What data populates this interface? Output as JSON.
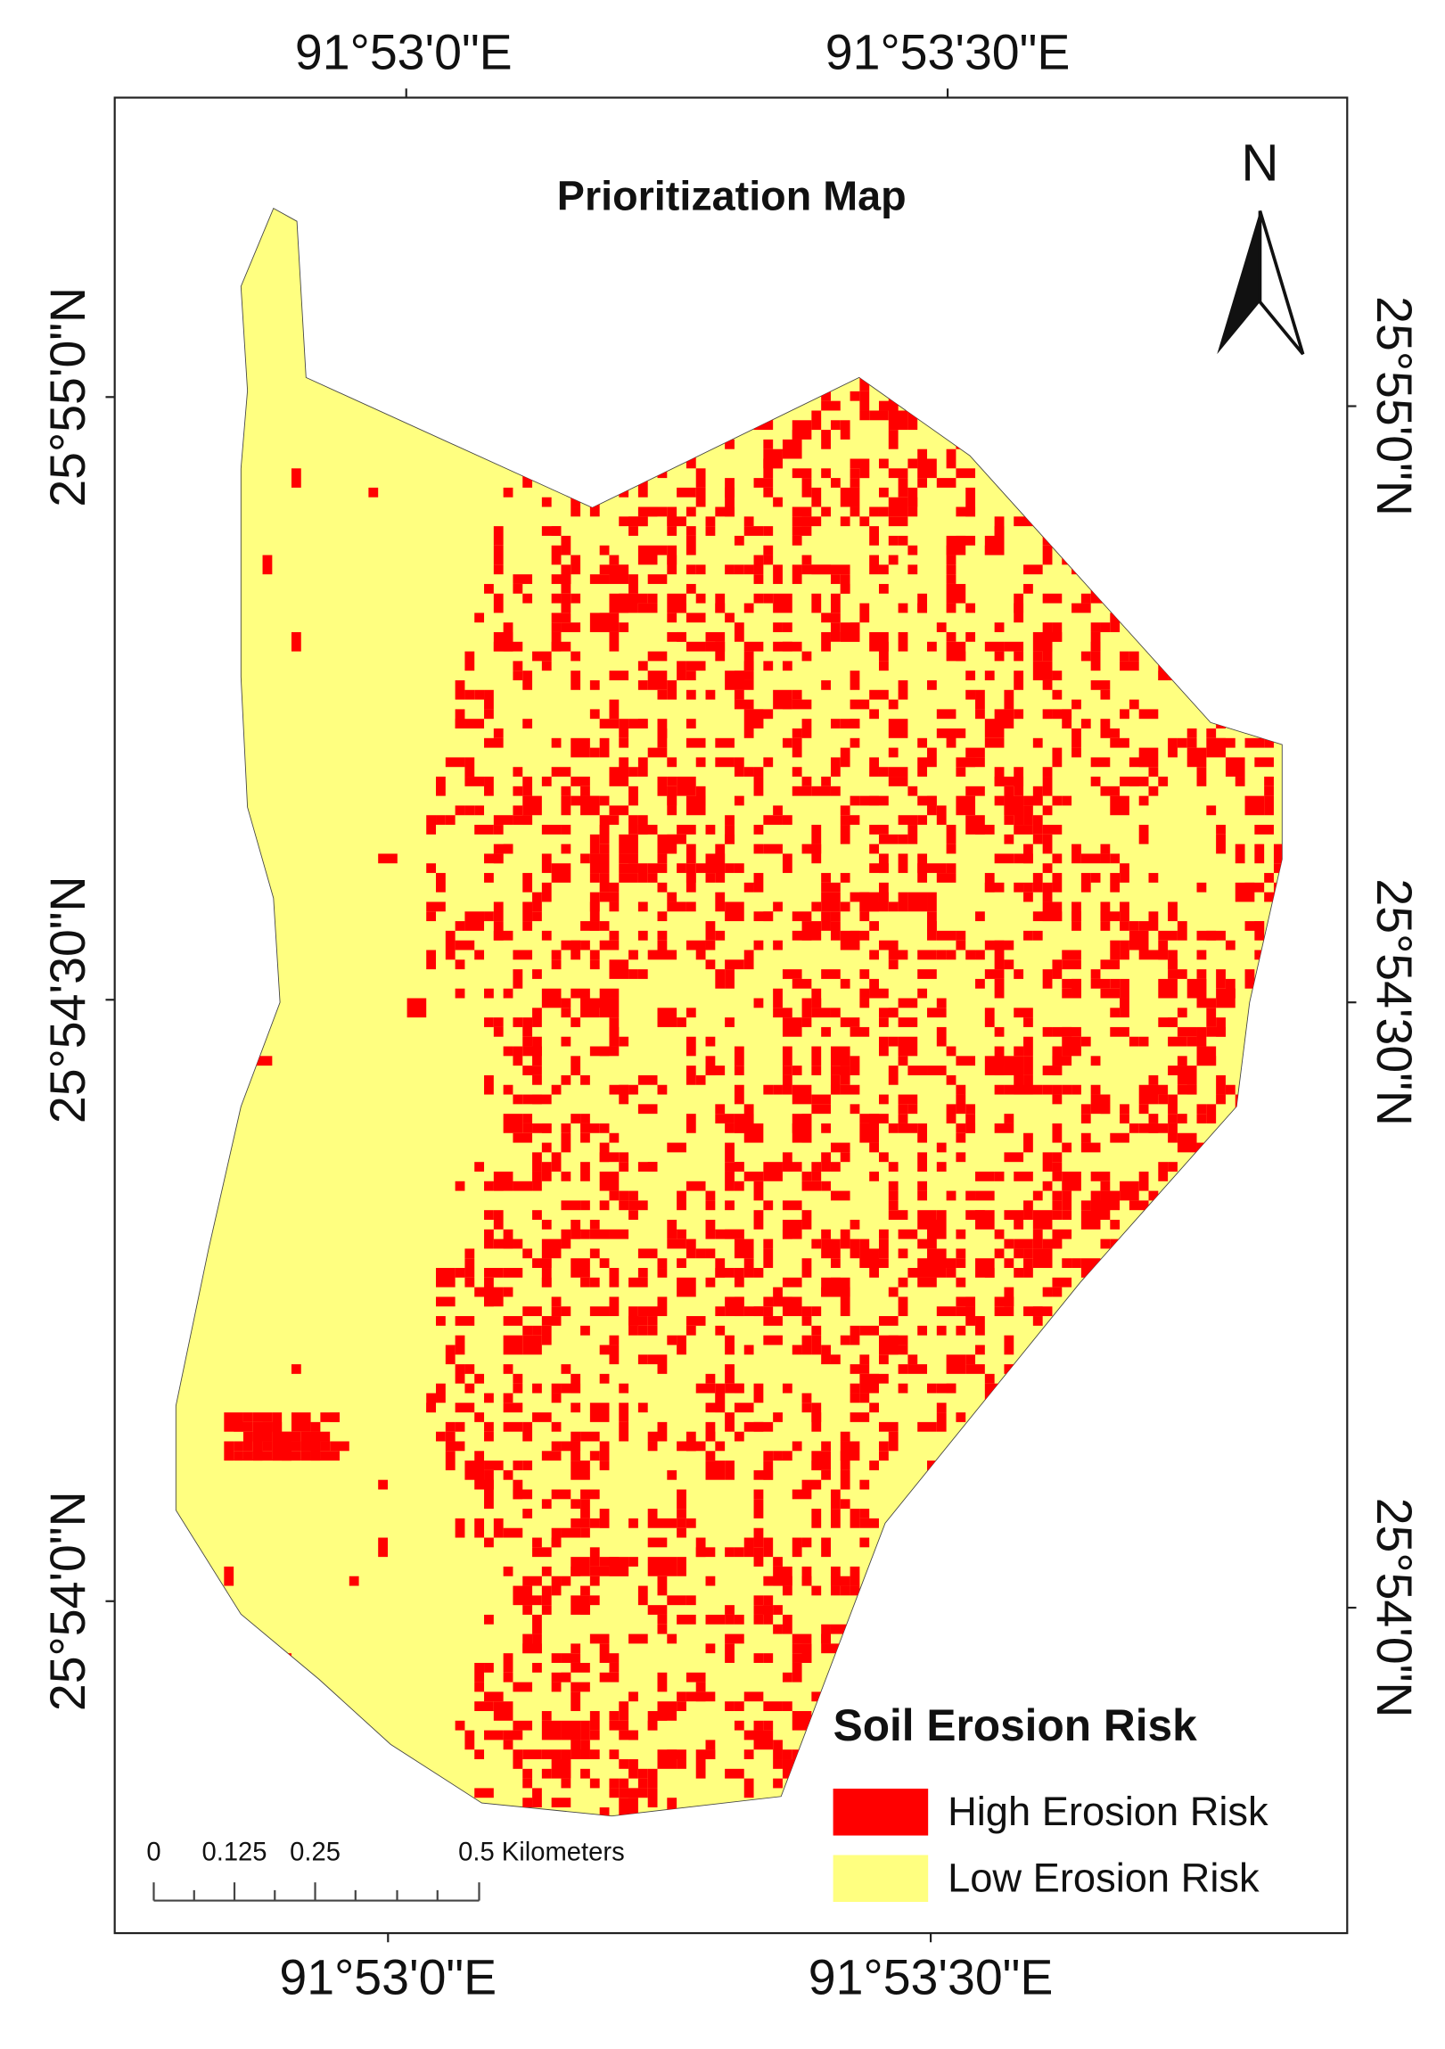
{
  "title": "Prioritization Map",
  "north_label": "N",
  "top_labels": [
    "91°53'0\"E",
    "91°53'30\"E"
  ],
  "bottom_labels": [
    "91°53'0\"E",
    "91°53'30\"E"
  ],
  "left_labels": [
    "25°55'0\"N",
    "25°54'30\"N",
    "25°54'0\"N"
  ],
  "right_labels": [
    "25°55'0\"N",
    "25°54'30\"N",
    "25°54'0\"N"
  ],
  "legend": {
    "title": "Soil Erosion Risk",
    "items": [
      {
        "label": "High Erosion Risk",
        "color": "#ff0000"
      },
      {
        "label": "Low Erosion Risk",
        "color": "#ffff80"
      }
    ]
  },
  "scale_bar": {
    "labels": [
      "0",
      "0.125",
      "0.25",
      "0.5 Kilometers"
    ]
  }
}
